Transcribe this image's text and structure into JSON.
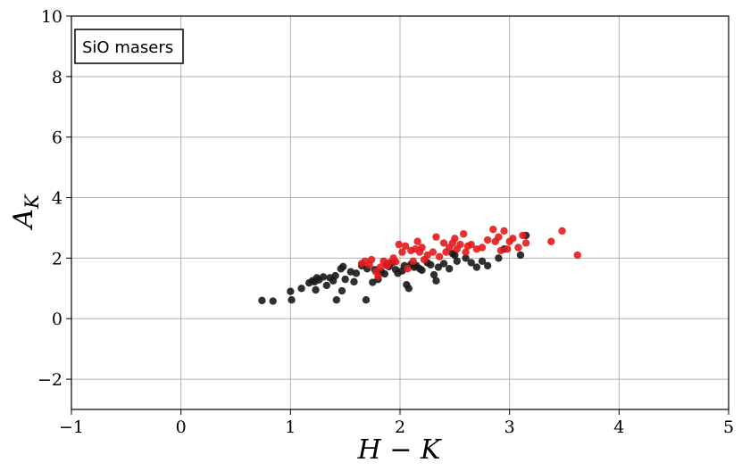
{
  "chart_data": {
    "type": "scatter",
    "title": "",
    "xlabel": "H − K",
    "ylabel": "A",
    "ylabel_subscript": "K",
    "xlim": [
      -1,
      5
    ],
    "ylim": [
      -3,
      10
    ],
    "xticks": [
      -1,
      0,
      1,
      2,
      3,
      4,
      5
    ],
    "yticks": [
      -2,
      0,
      2,
      4,
      6,
      8,
      10
    ],
    "xtick_labels": [
      "−1",
      "0",
      "1",
      "2",
      "3",
      "4",
      "5"
    ],
    "ytick_labels": [
      "−2",
      "0",
      "2",
      "4",
      "6",
      "8",
      "10"
    ],
    "grid": true,
    "annotation": "SiO masers",
    "annotation_position": "top-left",
    "series": [
      {
        "color": "#1a1a1a",
        "points": [
          [
            0.74,
            0.6
          ],
          [
            0.84,
            0.58
          ],
          [
            1.0,
            0.9
          ],
          [
            1.01,
            0.62
          ],
          [
            1.1,
            1.0
          ],
          [
            1.17,
            1.18
          ],
          [
            1.2,
            1.25
          ],
          [
            1.22,
            1.22
          ],
          [
            1.24,
            1.35
          ],
          [
            1.26,
            1.28
          ],
          [
            1.3,
            1.38
          ],
          [
            1.23,
            0.95
          ],
          [
            1.33,
            1.1
          ],
          [
            1.36,
            1.35
          ],
          [
            1.39,
            1.25
          ],
          [
            1.41,
            1.42
          ],
          [
            1.42,
            0.62
          ],
          [
            1.46,
            1.65
          ],
          [
            1.48,
            1.72
          ],
          [
            1.5,
            1.3
          ],
          [
            1.47,
            0.92
          ],
          [
            1.55,
            1.55
          ],
          [
            1.58,
            1.22
          ],
          [
            1.6,
            1.5
          ],
          [
            1.65,
            1.75
          ],
          [
            1.7,
            1.65
          ],
          [
            1.69,
            0.62
          ],
          [
            1.75,
            1.2
          ],
          [
            1.77,
            1.62
          ],
          [
            1.8,
            1.3
          ],
          [
            1.83,
            1.55
          ],
          [
            1.86,
            1.48
          ],
          [
            1.88,
            1.8
          ],
          [
            1.9,
            1.72
          ],
          [
            1.93,
            1.85
          ],
          [
            1.96,
            1.62
          ],
          [
            1.98,
            1.5
          ],
          [
            2.02,
            1.58
          ],
          [
            2.04,
            1.75
          ],
          [
            2.06,
            1.12
          ],
          [
            2.08,
            1.0
          ],
          [
            2.1,
            1.8
          ],
          [
            2.13,
            1.7
          ],
          [
            2.15,
            1.75
          ],
          [
            2.18,
            1.65
          ],
          [
            2.2,
            1.6
          ],
          [
            2.25,
            1.85
          ],
          [
            2.28,
            1.78
          ],
          [
            2.31,
            1.45
          ],
          [
            2.33,
            1.25
          ],
          [
            2.35,
            1.7
          ],
          [
            2.4,
            1.82
          ],
          [
            2.45,
            1.65
          ],
          [
            2.48,
            2.15
          ],
          [
            2.5,
            2.1
          ],
          [
            2.52,
            1.9
          ],
          [
            2.6,
            2.0
          ],
          [
            2.65,
            1.85
          ],
          [
            2.7,
            1.7
          ],
          [
            2.75,
            1.9
          ],
          [
            2.8,
            1.75
          ],
          [
            2.9,
            2.0
          ],
          [
            2.95,
            2.3
          ],
          [
            3.1,
            2.1
          ],
          [
            3.15,
            2.75
          ]
        ]
      },
      {
        "color": "#e41a1c",
        "points": [
          [
            1.65,
            1.82
          ],
          [
            1.68,
            1.9
          ],
          [
            1.72,
            1.78
          ],
          [
            1.74,
            1.95
          ],
          [
            1.78,
            1.55
          ],
          [
            1.8,
            1.4
          ],
          [
            1.82,
            1.7
          ],
          [
            1.85,
            1.9
          ],
          [
            1.88,
            1.75
          ],
          [
            1.9,
            1.85
          ],
          [
            1.94,
            2.0
          ],
          [
            1.96,
            1.88
          ],
          [
            1.99,
            2.45
          ],
          [
            2.02,
            2.2
          ],
          [
            2.05,
            2.4
          ],
          [
            2.07,
            1.65
          ],
          [
            2.1,
            2.25
          ],
          [
            2.12,
            1.9
          ],
          [
            2.14,
            2.3
          ],
          [
            2.16,
            2.55
          ],
          [
            2.18,
            2.2
          ],
          [
            2.2,
            2.35
          ],
          [
            2.22,
            1.95
          ],
          [
            2.25,
            2.1
          ],
          [
            2.3,
            2.2
          ],
          [
            2.33,
            2.7
          ],
          [
            2.36,
            2.05
          ],
          [
            2.4,
            2.5
          ],
          [
            2.42,
            2.2
          ],
          [
            2.45,
            2.35
          ],
          [
            2.48,
            2.5
          ],
          [
            2.5,
            2.65
          ],
          [
            2.52,
            2.3
          ],
          [
            2.55,
            2.45
          ],
          [
            2.58,
            2.8
          ],
          [
            2.6,
            2.2
          ],
          [
            2.62,
            2.4
          ],
          [
            2.65,
            2.45
          ],
          [
            2.7,
            2.3
          ],
          [
            2.75,
            2.35
          ],
          [
            2.8,
            2.6
          ],
          [
            2.85,
            2.95
          ],
          [
            2.87,
            2.55
          ],
          [
            2.9,
            2.7
          ],
          [
            2.92,
            2.25
          ],
          [
            2.95,
            2.9
          ],
          [
            2.98,
            2.3
          ],
          [
            3.0,
            2.55
          ],
          [
            3.03,
            2.65
          ],
          [
            3.08,
            2.35
          ],
          [
            3.12,
            2.75
          ],
          [
            3.15,
            2.5
          ],
          [
            3.38,
            2.55
          ],
          [
            3.48,
            2.9
          ],
          [
            3.62,
            2.1
          ]
        ]
      }
    ]
  }
}
